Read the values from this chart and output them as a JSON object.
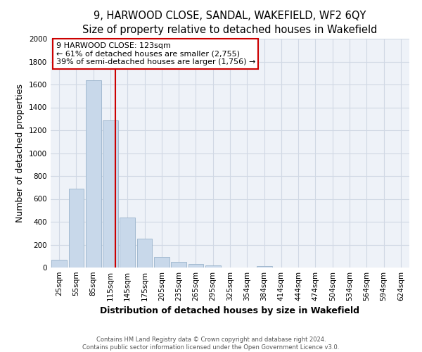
{
  "title": "9, HARWOOD CLOSE, SANDAL, WAKEFIELD, WF2 6QY",
  "subtitle": "Size of property relative to detached houses in Wakefield",
  "xlabel": "Distribution of detached houses by size in Wakefield",
  "ylabel": "Number of detached properties",
  "bar_labels": [
    "25sqm",
    "55sqm",
    "85sqm",
    "115sqm",
    "145sqm",
    "175sqm",
    "205sqm",
    "235sqm",
    "265sqm",
    "295sqm",
    "325sqm",
    "354sqm",
    "384sqm",
    "414sqm",
    "444sqm",
    "474sqm",
    "504sqm",
    "534sqm",
    "564sqm",
    "594sqm",
    "624sqm"
  ],
  "bar_values": [
    65,
    690,
    1635,
    1285,
    435,
    255,
    90,
    50,
    30,
    20,
    0,
    0,
    15,
    0,
    0,
    0,
    0,
    0,
    0,
    0,
    0
  ],
  "bar_color": "#c8d8ea",
  "bar_edgecolor": "#9ab4cc",
  "vline_color": "#cc0000",
  "ylim": [
    0,
    2000
  ],
  "yticks": [
    0,
    200,
    400,
    600,
    800,
    1000,
    1200,
    1400,
    1600,
    1800,
    2000
  ],
  "annotation_title": "9 HARWOOD CLOSE: 123sqm",
  "annotation_line1": "← 61% of detached houses are smaller (2,755)",
  "annotation_line2": "39% of semi-detached houses are larger (1,756) →",
  "annotation_box_facecolor": "#ffffff",
  "annotation_box_edgecolor": "#cc0000",
  "footer_line1": "Contains HM Land Registry data © Crown copyright and database right 2024.",
  "footer_line2": "Contains public sector information licensed under the Open Government Licence v3.0.",
  "background_color": "#ffffff",
  "plot_bg_color": "#eef2f8",
  "grid_color": "#d0d8e4",
  "title_fontsize": 10.5,
  "axis_label_fontsize": 9,
  "tick_fontsize": 7.5,
  "annotation_fontsize": 8
}
